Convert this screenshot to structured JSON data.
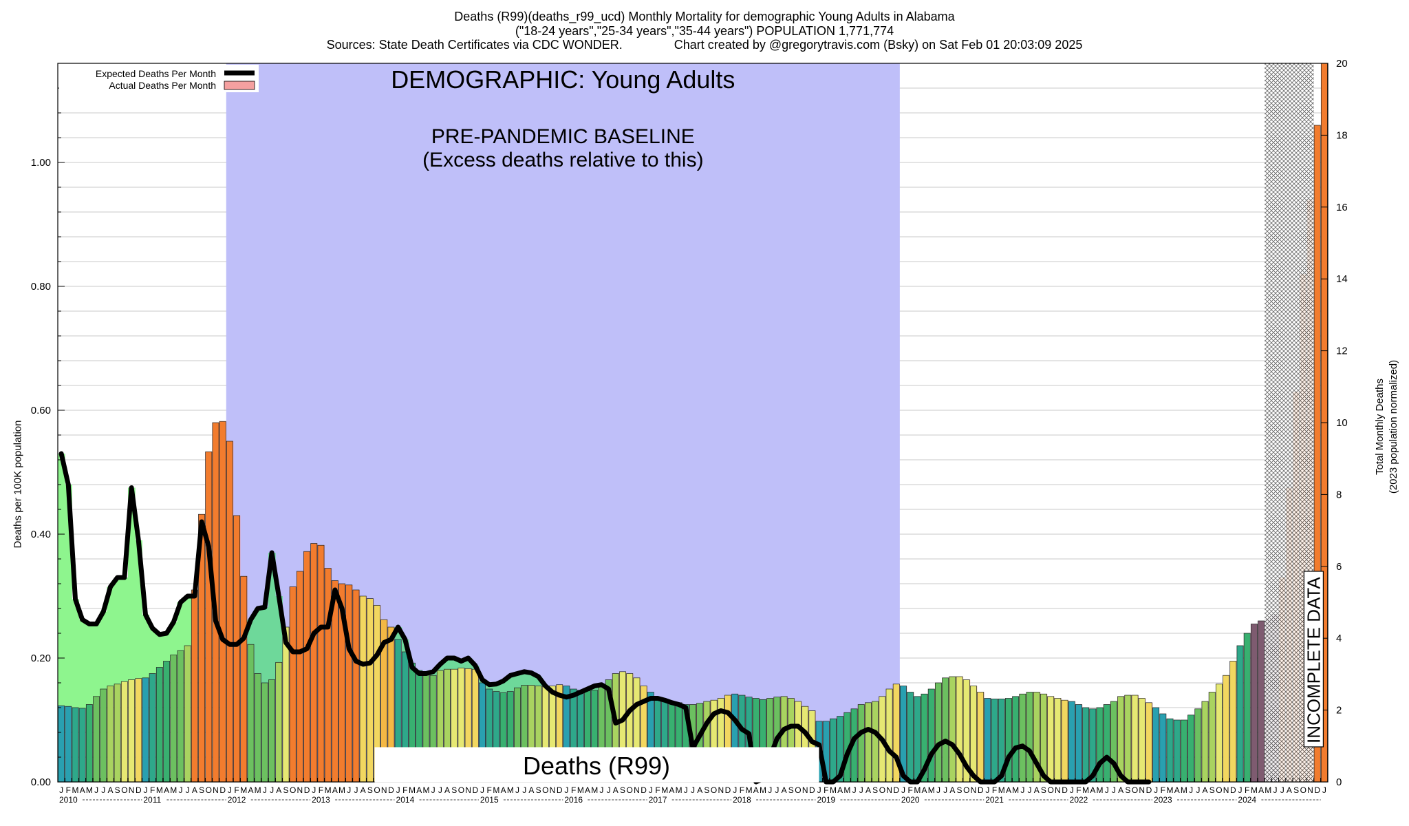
{
  "header": {
    "line1": "Deaths (R99)(deaths_r99_ucd) Monthly Mortality for demographic Young Adults in Alabama",
    "line2": "(\"18-24 years\",\"25-34 years\",\"35-44 years\") POPULATION 1,771,774",
    "line3": "Sources: State Death Certificates via CDC WONDER.               Chart created by @gregorytravis.com (Bsky) on Sat Feb 01 20:03:09 2025"
  },
  "annotations": {
    "demographic": "DEMOGRAPHIC: Young Adults",
    "baseline_1": "PRE-PANDEMIC BASELINE",
    "baseline_2": "(Excess deaths relative to this)",
    "cause_box": "Deaths (R99)",
    "incomplete": "INCOMPLETE DATA"
  },
  "legend": {
    "expected": "Expected Deaths Per Month",
    "actual": "Actual Deaths Per Month"
  },
  "axes": {
    "left_label": "Deaths per 100K population",
    "right_label_1": "Total Monthly Deaths",
    "right_label_2": "(2023 population normalized)",
    "month_letters": [
      "J",
      "F",
      "M",
      "A",
      "M",
      "J",
      "J",
      "A",
      "S",
      "O",
      "N",
      "D"
    ],
    "years": [
      "2010",
      "2011",
      "2012",
      "2013",
      "2014",
      "2015",
      "2016",
      "2017",
      "2018",
      "2019",
      "2020",
      "2021",
      "2022",
      "2023",
      "2024"
    ]
  },
  "colors": {
    "baseline_band": "#bfbff9",
    "excess_fill": "#8ef58e",
    "excess_fill_2": "#6ed89a",
    "deficit_fill": "#f5a0a0",
    "expected_line": "#000000",
    "bar_palette": [
      "#2f86c0",
      "#29a0b0",
      "#2ea88a",
      "#38b070",
      "#6cc060",
      "#a9d360",
      "#e6e873",
      "#f2d760",
      "#f4b845",
      "#f59a3a",
      "#f27c2e",
      "#8e6aa0",
      "#7e5b70"
    ]
  },
  "chart_data": {
    "type": "bar",
    "start": "2010-01",
    "frequency": "monthly",
    "ylabel": "Deaths per 100K population",
    "y2label": "Total Monthly Deaths (2023 population normalized)",
    "ylim": [
      0,
      1.16
    ],
    "y2lim": [
      0,
      20
    ],
    "yticks": [
      "0.00",
      "0.20",
      "0.40",
      "0.60",
      "0.80",
      "1.00"
    ],
    "y2ticks": [
      "0",
      "2",
      "4",
      "6",
      "8",
      "10",
      "12",
      "14",
      "16",
      "18",
      "20"
    ],
    "baseline_period": [
      "2012-01",
      "2019-12"
    ],
    "incomplete_from": "2024-06",
    "series": [
      {
        "name": "Actual Deaths Per Month",
        "values": [
          0.123,
          0.122,
          0.12,
          0.119,
          0.125,
          0.138,
          0.15,
          0.155,
          0.158,
          0.162,
          0.165,
          0.167,
          0.168,
          0.175,
          0.185,
          0.195,
          0.205,
          0.212,
          0.22,
          0.31,
          0.432,
          0.533,
          0.58,
          0.582,
          0.55,
          0.43,
          0.332,
          0.222,
          0.175,
          0.16,
          0.165,
          0.193,
          0.25,
          0.315,
          0.34,
          0.372,
          0.385,
          0.382,
          0.345,
          0.325,
          0.32,
          0.318,
          0.31,
          0.3,
          0.296,
          0.285,
          0.262,
          0.25,
          0.23,
          0.21,
          0.192,
          0.18,
          0.175,
          0.172,
          0.18,
          0.182,
          0.182,
          0.184,
          0.183,
          0.182,
          0.16,
          0.15,
          0.146,
          0.144,
          0.146,
          0.152,
          0.156,
          0.156,
          0.155,
          0.154,
          0.155,
          0.157,
          0.155,
          0.15,
          0.148,
          0.147,
          0.148,
          0.155,
          0.165,
          0.175,
          0.178,
          0.175,
          0.168,
          0.155,
          0.145,
          0.135,
          0.132,
          0.13,
          0.128,
          0.125,
          0.125,
          0.127,
          0.13,
          0.132,
          0.135,
          0.14,
          0.142,
          0.14,
          0.137,
          0.135,
          0.133,
          0.135,
          0.137,
          0.138,
          0.135,
          0.13,
          0.122,
          0.115,
          0.098,
          0.098,
          0.102,
          0.106,
          0.112,
          0.118,
          0.125,
          0.128,
          0.13,
          0.138,
          0.15,
          0.158,
          0.155,
          0.145,
          0.138,
          0.142,
          0.15,
          0.16,
          0.168,
          0.17,
          0.17,
          0.165,
          0.155,
          0.145,
          0.135,
          0.134,
          0.134,
          0.135,
          0.138,
          0.142,
          0.145,
          0.145,
          0.142,
          0.138,
          0.135,
          0.132,
          0.13,
          0.125,
          0.12,
          0.118,
          0.12,
          0.125,
          0.13,
          0.138,
          0.14,
          0.14,
          0.135,
          0.128,
          0.12,
          0.11,
          0.102,
          0.1,
          0.1,
          0.108,
          0.118,
          0.13,
          0.145,
          0.158,
          0.172,
          0.195,
          0.22,
          0.24,
          0.255,
          0.26,
          0.263,
          0.27,
          0.33,
          0.475,
          0.63,
          0.82,
          0.94,
          1.06,
          1.16
        ]
      },
      {
        "name": "Expected Deaths Per Month",
        "values": [
          0.53,
          0.48,
          0.295,
          0.262,
          0.255,
          0.255,
          0.275,
          0.315,
          0.33,
          0.33,
          0.475,
          0.39,
          0.27,
          0.248,
          0.238,
          0.24,
          0.258,
          0.29,
          0.3,
          0.3,
          0.42,
          0.38,
          0.26,
          0.23,
          0.222,
          0.222,
          0.232,
          0.262,
          0.28,
          0.282,
          0.37,
          0.3,
          0.225,
          0.21,
          0.21,
          0.215,
          0.24,
          0.25,
          0.25,
          0.31,
          0.28,
          0.215,
          0.195,
          0.19,
          0.192,
          0.205,
          0.225,
          0.23,
          0.25,
          0.23,
          0.185,
          0.175,
          0.175,
          0.178,
          0.19,
          0.2,
          0.2,
          0.195,
          0.2,
          0.188,
          0.165,
          0.157,
          0.158,
          0.163,
          0.172,
          0.175,
          0.178,
          0.176,
          0.17,
          0.155,
          0.145,
          0.14,
          0.137,
          0.14,
          0.145,
          0.15,
          0.155,
          0.157,
          0.15,
          0.095,
          0.1,
          0.115,
          0.125,
          0.13,
          0.135,
          0.135,
          0.132,
          0.128,
          0.125,
          0.12,
          0.055,
          0.075,
          0.095,
          0.11,
          0.115,
          0.112,
          0.1,
          0.085,
          0.078,
          0.0,
          0.005,
          0.04,
          0.07,
          0.085,
          0.09,
          0.09,
          0.08,
          0.065,
          0.06,
          0.0,
          0.0,
          0.01,
          0.045,
          0.07,
          0.08,
          0.085,
          0.08,
          0.068,
          0.05,
          0.04,
          0.01,
          0.0,
          0.0,
          0.02,
          0.045,
          0.06,
          0.066,
          0.06,
          0.045,
          0.025,
          0.01,
          0.0,
          0.0,
          0.0,
          0.01,
          0.04,
          0.055,
          0.058,
          0.05,
          0.03,
          0.01,
          0.0,
          0.0,
          0.0,
          0.0,
          0.0,
          0.0,
          0.01,
          0.03,
          0.04,
          0.03,
          0.01,
          0.0,
          0.0,
          0.0,
          0.0
        ]
      }
    ]
  }
}
